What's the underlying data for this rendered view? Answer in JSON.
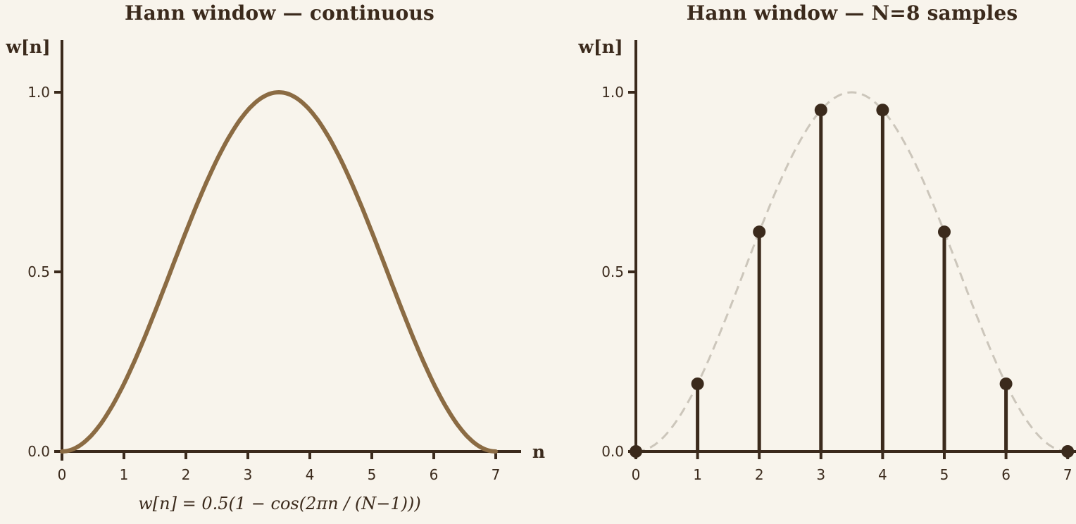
{
  "figure": {
    "background": "#f8f4ec",
    "ink_color": "#3b2a1c",
    "curve_color": "#8b6b43",
    "envelope_color": "#ccc6bb"
  },
  "chart_data": [
    {
      "type": "line",
      "title": "Hann window — continuous",
      "xlabel": "n",
      "ylabel": "w[n]",
      "x_ticks": [
        "0",
        "1",
        "2",
        "3",
        "4",
        "5",
        "6",
        "7"
      ],
      "y_ticks": [
        {
          "value": 0,
          "label": "0.0"
        },
        {
          "value": 0.5,
          "label": "0.5"
        },
        {
          "value": 1,
          "label": "1.0"
        }
      ],
      "xlim": [
        0,
        7.4
      ],
      "ylim": [
        0,
        1.15
      ],
      "grid": false,
      "series": [
        {
          "name": "hann-window-curve",
          "formula": "w[n] = 0.5(1 − cos(2πn / (N−1)))",
          "N": 8,
          "x_range": [
            0,
            7
          ],
          "peak": {
            "x": 3.5,
            "y": 1.0
          },
          "color": "#8b6b43"
        }
      ],
      "annotation": "w[n] = 0.5(1 − cos(2πn / (N−1)))"
    },
    {
      "type": "stem",
      "title": "Hann window — N=8 samples",
      "ylabel": "w[n]",
      "x": [
        0,
        1,
        2,
        3,
        4,
        5,
        6,
        7
      ],
      "values": [
        0,
        0.1883,
        0.6113,
        0.9505,
        0.9505,
        0.6113,
        0.1883,
        0
      ],
      "x_ticks": [
        "0",
        "1",
        "2",
        "3",
        "4",
        "5",
        "6",
        "7"
      ],
      "y_ticks": [
        {
          "value": 0,
          "label": "0.0"
        },
        {
          "value": 0.5,
          "label": "0.5"
        },
        {
          "value": 1,
          "label": "1.0"
        }
      ],
      "xlim": [
        0,
        7.1
      ],
      "ylim": [
        0,
        1.15
      ],
      "grid": false,
      "envelope": {
        "name": "hann-continuous-envelope",
        "style": "dashed",
        "N": 8,
        "x_range": [
          0,
          7
        ],
        "color": "#ccc6bb"
      },
      "stem_color": "#3b2a1c"
    }
  ]
}
